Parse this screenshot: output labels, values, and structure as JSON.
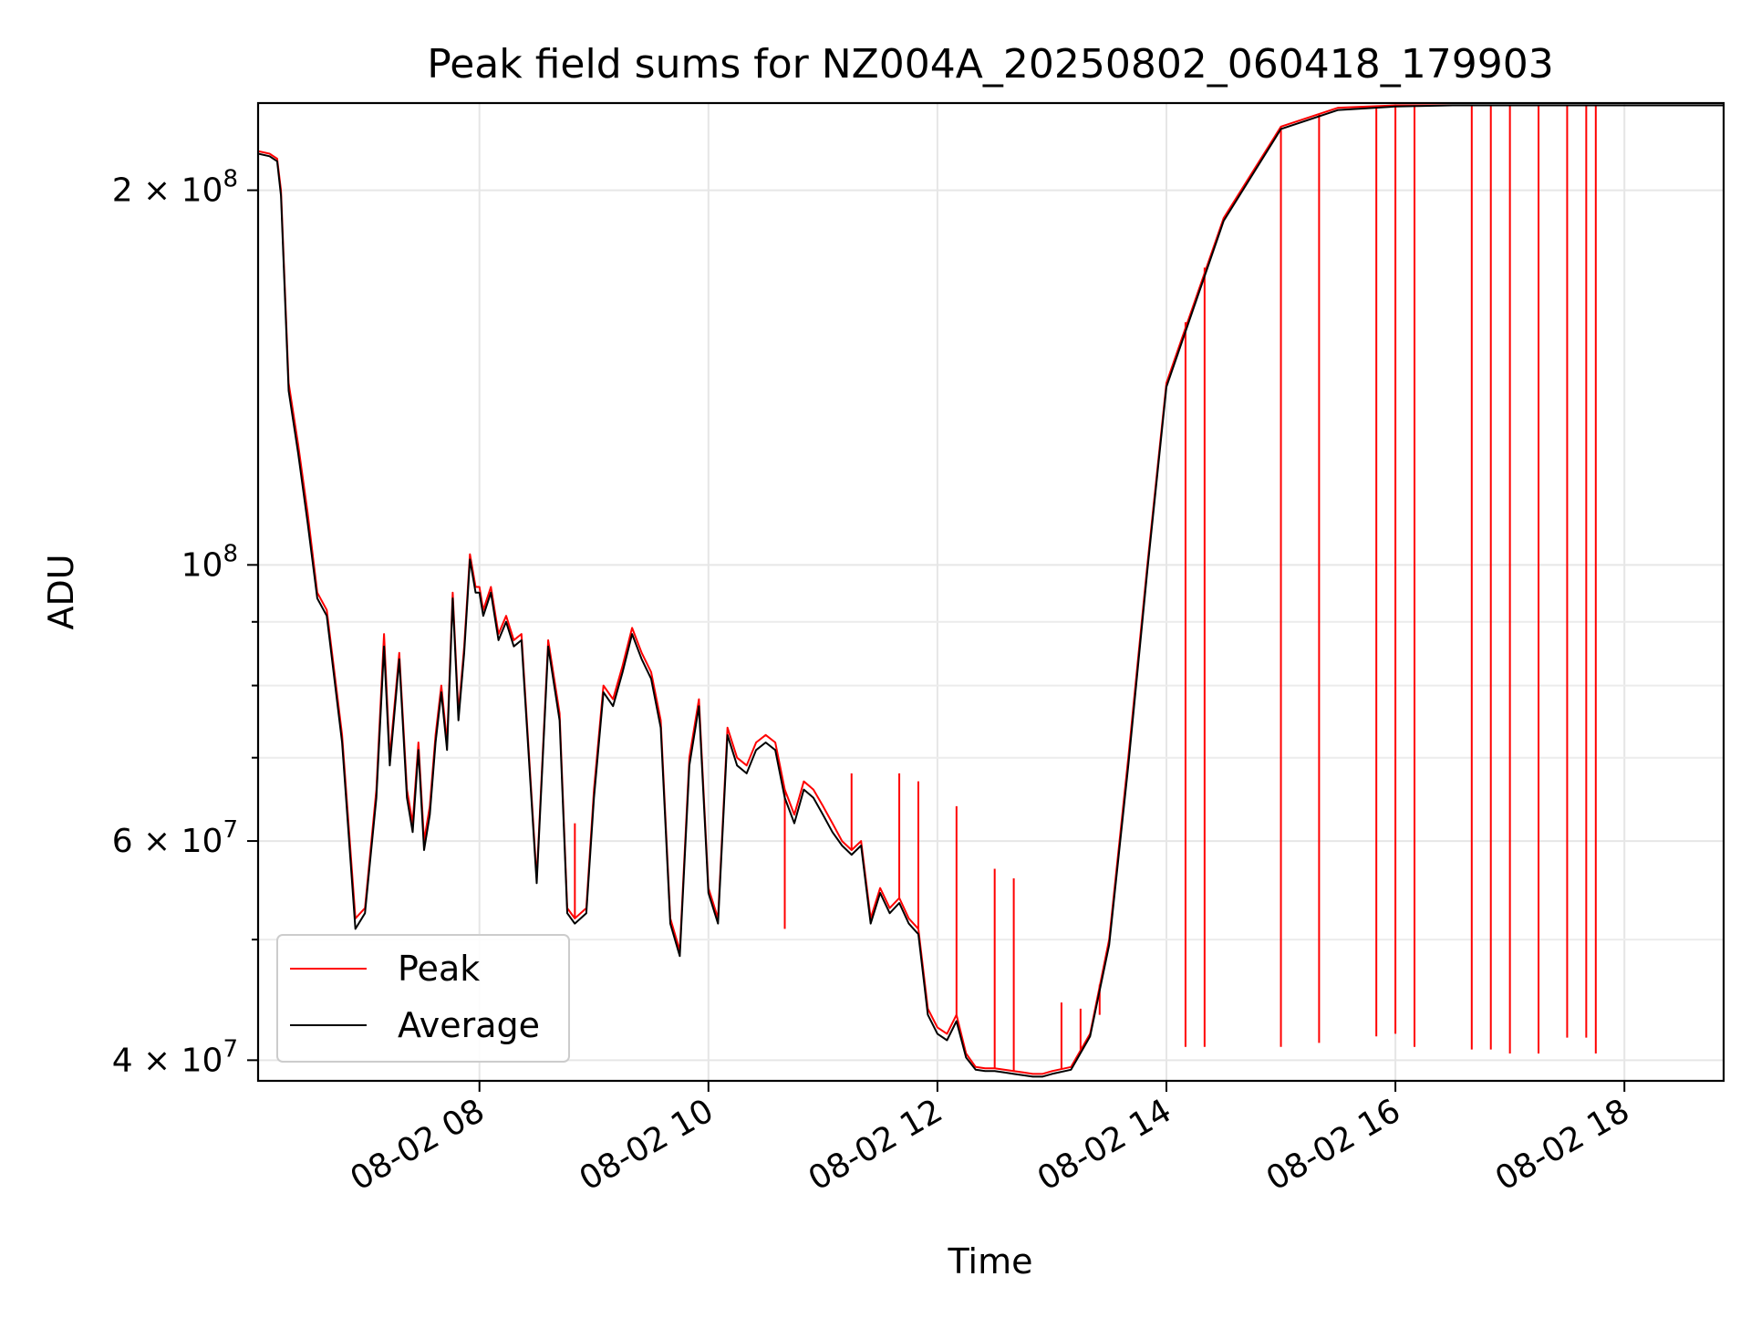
{
  "chart_data": {
    "type": "line",
    "title": "Peak field sums for NZ004A_20250802_060418_179903",
    "xlabel": "Time",
    "ylabel": "ADU",
    "y_scale": "log",
    "ylim": [
      38500000,
      235000000
    ],
    "xlim": [
      "2025-08-02T06:04",
      "2025-08-02T18:52"
    ],
    "grid": true,
    "legend_position": "lower-left",
    "x_ticks": [
      {
        "time": "2025-08-02T08:00",
        "label": "08-02 08"
      },
      {
        "time": "2025-08-02T10:00",
        "label": "08-02 10"
      },
      {
        "time": "2025-08-02T12:00",
        "label": "08-02 12"
      },
      {
        "time": "2025-08-02T14:00",
        "label": "08-02 14"
      },
      {
        "time": "2025-08-02T16:00",
        "label": "08-02 16"
      },
      {
        "time": "2025-08-02T18:00",
        "label": "08-02 18"
      }
    ],
    "y_ticks_major": [
      {
        "value": 40000000,
        "mantissa": "4",
        "exponent": "7"
      },
      {
        "value": 60000000,
        "mantissa": "6",
        "exponent": "7"
      },
      {
        "value": 100000000,
        "mantissa": "",
        "exponent": "8"
      },
      {
        "value": 200000000,
        "mantissa": "2",
        "exponent": "8"
      }
    ],
    "y_ticks_minor": [
      50000000,
      70000000,
      80000000,
      90000000
    ],
    "series": [
      {
        "name": "Peak",
        "color": "#ff0000",
        "x": [
          "06:04",
          "06:10",
          "06:14",
          "06:16",
          "06:20",
          "06:25",
          "06:30",
          "06:35",
          "06:40",
          "06:48",
          "06:55",
          "07:00",
          "07:06",
          "07:10",
          "07:13",
          "07:18",
          "07:22",
          "07:25",
          "07:28",
          "07:31",
          "07:34",
          "07:37",
          "07:40",
          "07:43",
          "07:46",
          "07:49",
          "07:52",
          "07:55",
          "07:58",
          "08:00",
          "08:02",
          "08:06",
          "08:10",
          "08:14",
          "08:18",
          "08:22",
          "08:30",
          "08:36",
          "08:42",
          "08:46",
          "08:50",
          "08:56",
          "09:00",
          "09:05",
          "09:10",
          "09:15",
          "09:20",
          "09:25",
          "09:30",
          "09:35",
          "09:40",
          "09:45",
          "09:50",
          "09:55",
          "10:00",
          "10:05",
          "10:10",
          "10:15",
          "10:20",
          "10:25",
          "10:30",
          "10:35",
          "10:40",
          "10:45",
          "10:50",
          "10:55",
          "11:00",
          "11:05",
          "11:10",
          "11:15",
          "11:20",
          "11:25",
          "11:30",
          "11:35",
          "11:40",
          "11:45",
          "11:50",
          "11:55",
          "12:00",
          "12:05",
          "12:10",
          "12:15",
          "12:20",
          "12:25",
          "12:30",
          "12:35",
          "12:40",
          "12:45",
          "12:50",
          "12:55",
          "13:00",
          "13:10",
          "13:20",
          "13:30",
          "13:40",
          "13:50",
          "14:00",
          "14:30",
          "15:00",
          "15:30",
          "16:00",
          "16:30",
          "17:00",
          "17:30",
          "17:50",
          "18:00",
          "18:05",
          "18:10",
          "18:15",
          "18:20",
          "18:25",
          "18:30",
          "18:35",
          "18:40",
          "18:45",
          "18:52"
        ],
        "values": [
          215000000,
          214000000,
          212000000,
          200000000,
          140000000,
          125000000,
          110000000,
          95000000,
          92000000,
          73000000,
          52000000,
          53000000,
          66000000,
          88000000,
          70000000,
          85000000,
          66000000,
          62000000,
          72000000,
          60000000,
          64000000,
          73000000,
          80000000,
          72000000,
          95000000,
          76000000,
          86000000,
          102000000,
          96000000,
          96000000,
          92000000,
          96000000,
          88000000,
          91000000,
          87000000,
          88000000,
          56000000,
          87000000,
          76000000,
          53000000,
          52000000,
          53000000,
          66000000,
          80000000,
          78000000,
          83000000,
          89000000,
          85000000,
          82000000,
          75000000,
          52000000,
          49000000,
          70000000,
          78000000,
          55000000,
          52000000,
          74000000,
          70000000,
          69000000,
          72000000,
          73000000,
          72000000,
          66000000,
          63000000,
          67000000,
          66000000,
          64000000,
          62000000,
          60000000,
          59000000,
          60000000,
          52000000,
          55000000,
          53000000,
          54000000,
          52000000,
          51000000,
          44000000,
          42500000,
          42000000,
          43500000,
          40500000,
          39500000,
          39400000,
          39400000,
          39300000,
          39200000,
          39100000,
          39000000,
          39000000,
          39200000,
          39500000,
          42000000,
          50000000,
          70000000,
          100000000,
          140000000,
          190000000,
          225000000,
          233000000,
          234000000,
          234000000,
          234000000,
          234000000,
          234000000,
          234000000,
          234000000,
          234000000,
          234000000,
          234000000,
          234000000,
          234000000,
          234000000,
          234000000,
          234000000,
          234000000
        ],
        "spikes": [
          {
            "x": "08:50",
            "value": 62000000
          },
          {
            "x": "10:40",
            "value": 51000000
          },
          {
            "x": "11:15",
            "value": 68000000
          },
          {
            "x": "11:40",
            "value": 68000000
          },
          {
            "x": "11:50",
            "value": 67000000
          },
          {
            "x": "12:10",
            "value": 64000000
          },
          {
            "x": "12:30",
            "value": 57000000
          },
          {
            "x": "12:40",
            "value": 56000000
          },
          {
            "x": "13:05",
            "value": 44500000
          },
          {
            "x": "13:15",
            "value": 44000000
          },
          {
            "x": "13:25",
            "value": 43500000
          },
          {
            "x": "14:10",
            "value": 41000000
          },
          {
            "x": "14:20",
            "value": 41000000
          },
          {
            "x": "15:00",
            "value": 41000000
          },
          {
            "x": "15:20",
            "value": 41300000
          },
          {
            "x": "15:50",
            "value": 41800000
          },
          {
            "x": "16:00",
            "value": 42000000
          },
          {
            "x": "16:10",
            "value": 41000000
          },
          {
            "x": "16:40",
            "value": 40800000
          },
          {
            "x": "16:50",
            "value": 40800000
          },
          {
            "x": "17:00",
            "value": 40500000
          },
          {
            "x": "17:15",
            "value": 40500000
          },
          {
            "x": "17:30",
            "value": 41700000
          },
          {
            "x": "17:40",
            "value": 41700000
          },
          {
            "x": "17:45",
            "value": 40500000
          }
        ]
      },
      {
        "name": "Average",
        "color": "#000000",
        "x": [
          "06:04",
          "06:10",
          "06:14",
          "06:16",
          "06:20",
          "06:25",
          "06:30",
          "06:35",
          "06:40",
          "06:48",
          "06:55",
          "07:00",
          "07:06",
          "07:10",
          "07:13",
          "07:18",
          "07:22",
          "07:25",
          "07:28",
          "07:31",
          "07:34",
          "07:37",
          "07:40",
          "07:43",
          "07:46",
          "07:49",
          "07:52",
          "07:55",
          "07:58",
          "08:00",
          "08:02",
          "08:06",
          "08:10",
          "08:14",
          "08:18",
          "08:22",
          "08:30",
          "08:36",
          "08:42",
          "08:46",
          "08:50",
          "08:56",
          "09:00",
          "09:05",
          "09:10",
          "09:15",
          "09:20",
          "09:25",
          "09:30",
          "09:35",
          "09:40",
          "09:45",
          "09:50",
          "09:55",
          "10:00",
          "10:05",
          "10:10",
          "10:15",
          "10:20",
          "10:25",
          "10:30",
          "10:35",
          "10:40",
          "10:45",
          "10:50",
          "10:55",
          "11:00",
          "11:05",
          "11:10",
          "11:15",
          "11:20",
          "11:25",
          "11:30",
          "11:35",
          "11:40",
          "11:45",
          "11:50",
          "11:55",
          "12:00",
          "12:05",
          "12:10",
          "12:15",
          "12:20",
          "12:25",
          "12:30",
          "12:35",
          "12:40",
          "12:45",
          "12:50",
          "12:55",
          "13:00",
          "13:10",
          "13:20",
          "13:30",
          "13:40",
          "13:50",
          "14:00",
          "14:30",
          "15:00",
          "15:30",
          "16:00",
          "16:30",
          "17:00",
          "17:30",
          "17:50",
          "18:00",
          "18:05",
          "18:10",
          "18:15",
          "18:20",
          "18:25",
          "18:30",
          "18:35",
          "18:40",
          "18:45",
          "18:52"
        ],
        "values": [
          214000000,
          213000000,
          211000000,
          198000000,
          138000000,
          123000000,
          108000000,
          94000000,
          91000000,
          72000000,
          51000000,
          52500000,
          65000000,
          86000000,
          69000000,
          84000000,
          65000000,
          61000000,
          71000000,
          59000000,
          63000000,
          72000000,
          79000000,
          71000000,
          94000000,
          75000000,
          85000000,
          101000000,
          95000000,
          95000000,
          91000000,
          95000000,
          87000000,
          90000000,
          86000000,
          87000000,
          55500000,
          86000000,
          75000000,
          52500000,
          51500000,
          52500000,
          65000000,
          79000000,
          77000000,
          82000000,
          88000000,
          84000000,
          81000000,
          74000000,
          51500000,
          48500000,
          69000000,
          77000000,
          54500000,
          51500000,
          73000000,
          69000000,
          68000000,
          71000000,
          72000000,
          71000000,
          65000000,
          62000000,
          66000000,
          65000000,
          63000000,
          61000000,
          59500000,
          58500000,
          59500000,
          51500000,
          54500000,
          52500000,
          53500000,
          51500000,
          50500000,
          43500000,
          42000000,
          41500000,
          43000000,
          40200000,
          39300000,
          39200000,
          39200000,
          39100000,
          39000000,
          38900000,
          38800000,
          38800000,
          39000000,
          39300000,
          41800000,
          49500000,
          69000000,
          99000000,
          139000000,
          189000000,
          224000000,
          232000000,
          233500000,
          234000000,
          234000000,
          234000000,
          234000000,
          234000000,
          234000000,
          234000000,
          234000000,
          234000000,
          234000000,
          234000000,
          234000000,
          234000000,
          234000000,
          234000000
        ]
      }
    ]
  }
}
